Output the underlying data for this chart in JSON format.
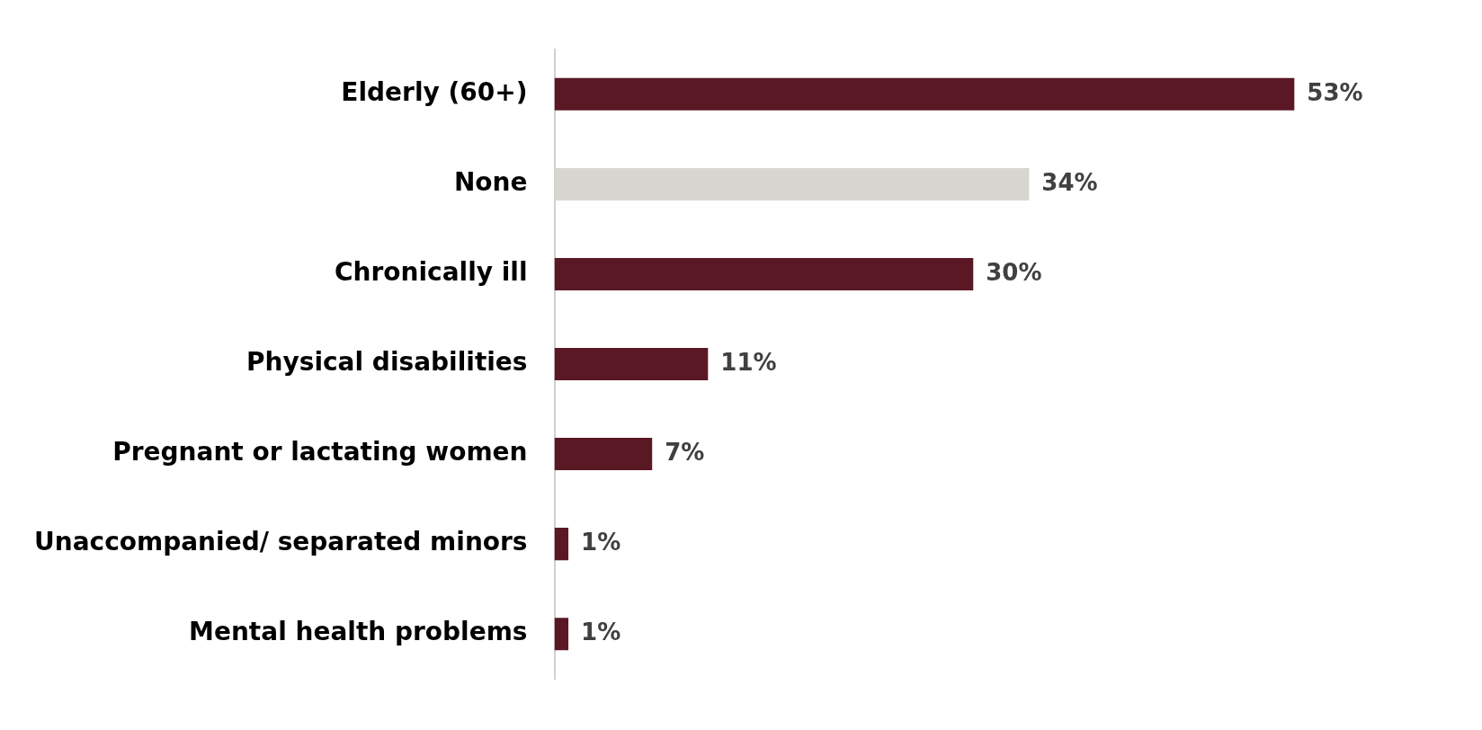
{
  "chart_data": {
    "type": "bar",
    "orientation": "horizontal",
    "categories": [
      "Elderly (60+)",
      "None",
      "Chronically ill",
      "Physical disabilities",
      "Pregnant or lactating women",
      "Unaccompanied/ separated minors",
      "Mental health problems"
    ],
    "values": [
      53,
      34,
      30,
      11,
      7,
      1,
      1
    ],
    "colors": [
      "#5a1825",
      "#d9d6d2",
      "#5a1825",
      "#5a1825",
      "#5a1825",
      "#5a1825",
      "#5a1825"
    ],
    "value_labels": [
      "53%",
      "34%",
      "30%",
      "11%",
      "7%",
      "1%",
      "1%"
    ],
    "grid": false,
    "legend": false
  }
}
